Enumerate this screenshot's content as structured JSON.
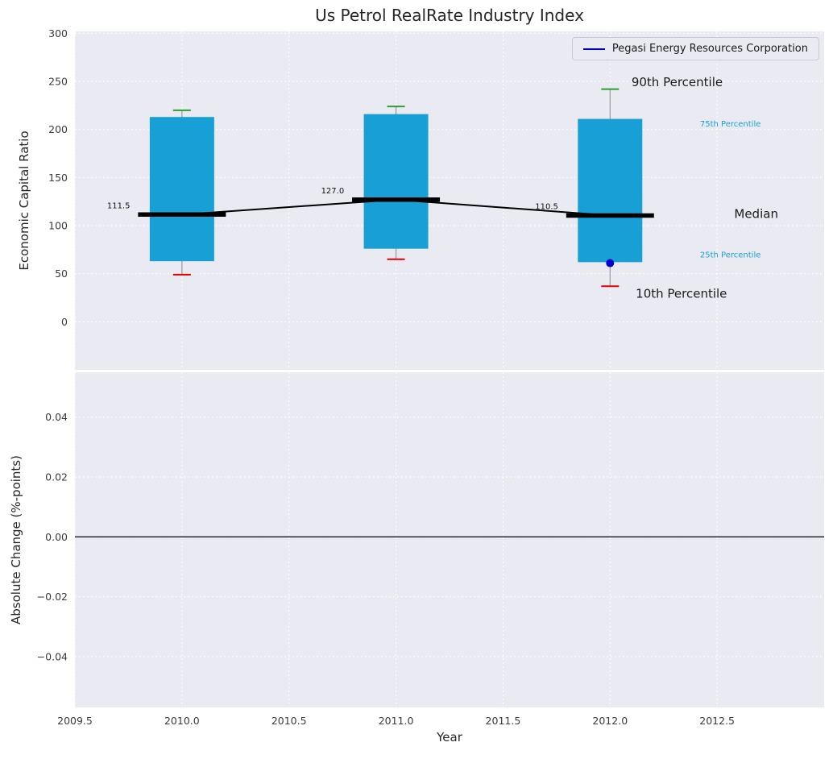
{
  "title": "Us Petrol RealRate Industry Index",
  "legend": {
    "label": "Pegasi Energy Resources Corporation",
    "line_color": "#0000cc"
  },
  "colors": {
    "figure_bg": "#ffffff",
    "axes_bg": "#eaebf2",
    "grid": "#ffffff",
    "box": "#189fd6",
    "whisker": "#9a9a9a",
    "cap_high": "#2ca02c",
    "cap_low": "#e50000",
    "median": "#000000",
    "company": "#0000cc",
    "tick": "#3b3b3b",
    "text": "#262626"
  },
  "x_axis": {
    "label": "Year",
    "lim": [
      2009.5,
      2013.0
    ],
    "ticks": [
      [
        2009.5,
        "2009.5"
      ],
      [
        2010,
        "2010.0"
      ],
      [
        2010.5,
        "2010.5"
      ],
      [
        2011,
        "2011.0"
      ],
      [
        2011.5,
        "2011.5"
      ],
      [
        2012,
        "2012.0"
      ],
      [
        2012.5,
        "2012.5"
      ]
    ]
  },
  "chart_data": [
    {
      "type": "boxplot",
      "title": "Us Petrol RealRate Industry Index",
      "ylabel": "Economic Capital Ratio",
      "ylim": [
        -50,
        302
      ],
      "yticks": [
        [
          0,
          "0"
        ],
        [
          50,
          "50"
        ],
        [
          100,
          "100"
        ],
        [
          150,
          "150"
        ],
        [
          200,
          "200"
        ],
        [
          250,
          "250"
        ],
        [
          300,
          "300"
        ]
      ],
      "categories": [
        2010,
        2011,
        2012
      ],
      "boxes": [
        {
          "x": 2010,
          "p10": 49,
          "p25": 63,
          "median": 111.5,
          "p75": 213,
          "p90": 220,
          "median_label": "111.5"
        },
        {
          "x": 2011,
          "p10": 65,
          "p25": 76,
          "median": 127.0,
          "p75": 216,
          "p90": 224,
          "median_label": "127.0"
        },
        {
          "x": 2012,
          "p10": 37,
          "p25": 62,
          "median": 110.5,
          "p75": 211,
          "p90": 242,
          "median_label": "110.5"
        }
      ],
      "company_point": {
        "x": 2012,
        "y": 61,
        "label": "Pegasi Energy Resources Corporation"
      },
      "annotations": [
        {
          "text": "90th Percentile",
          "x": 2012.1,
          "y": 245,
          "color": "#1a1a1a",
          "size": 15
        },
        {
          "text": "75th Percentile",
          "x": 2012.42,
          "y": 203,
          "color": "#189fd6",
          "size": 10
        },
        {
          "text": "Median",
          "x": 2012.58,
          "y": 108,
          "color": "#1a1a1a",
          "size": 15
        },
        {
          "text": "25th Percentile",
          "x": 2012.42,
          "y": 67,
          "color": "#189fd6",
          "size": 10
        },
        {
          "text": "10th Percentile",
          "x": 2012.12,
          "y": 25,
          "color": "#1a1a1a",
          "size": 15
        }
      ]
    },
    {
      "type": "empty",
      "ylabel": "Absolute Change (%-points)",
      "ylim": [
        -0.057,
        0.055
      ],
      "yticks": [
        [
          0.04,
          "0.04"
        ],
        [
          0.02,
          "0.02"
        ],
        [
          0,
          "0.00"
        ],
        [
          -0.02,
          "−0.02"
        ],
        [
          -0.04,
          "−0.04"
        ]
      ],
      "zero_line": true
    }
  ]
}
